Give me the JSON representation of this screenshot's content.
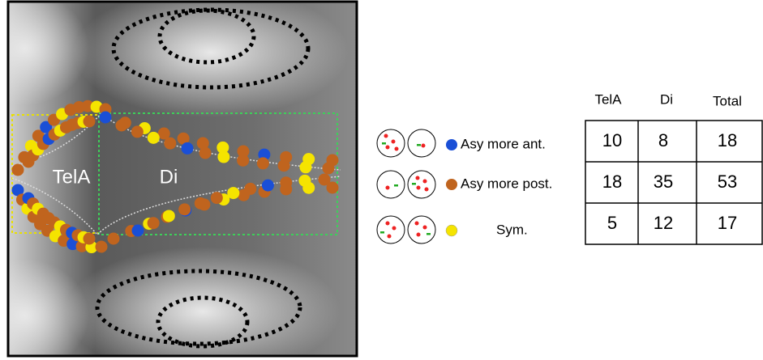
{
  "image": {
    "labels": [
      "TelA",
      "Di"
    ]
  },
  "legend": [
    "Asy more ant.",
    "Asy more post.",
    "Sym."
  ],
  "table": {
    "header": [
      "TelA",
      "Di",
      "Total"
    ],
    "rows": [
      [
        "10",
        "8",
        "18"
      ],
      [
        "18",
        "35",
        "53"
      ],
      [
        "5",
        "12",
        "17"
      ]
    ]
  }
}
